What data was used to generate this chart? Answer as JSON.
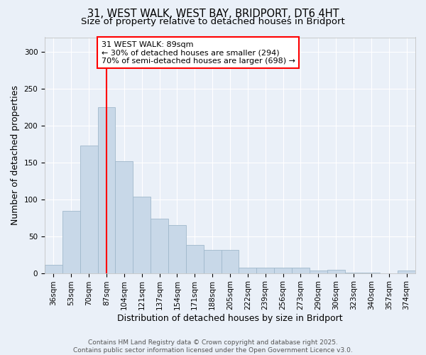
{
  "title_line1": "31, WEST WALK, WEST BAY, BRIDPORT, DT6 4HT",
  "title_line2": "Size of property relative to detached houses in Bridport",
  "xlabel": "Distribution of detached houses by size in Bridport",
  "ylabel": "Number of detached properties",
  "bin_labels": [
    "36sqm",
    "53sqm",
    "70sqm",
    "87sqm",
    "104sqm",
    "121sqm",
    "137sqm",
    "154sqm",
    "171sqm",
    "188sqm",
    "205sqm",
    "222sqm",
    "239sqm",
    "256sqm",
    "273sqm",
    "290sqm",
    "306sqm",
    "323sqm",
    "340sqm",
    "357sqm",
    "374sqm"
  ],
  "bar_values": [
    11,
    84,
    173,
    225,
    152,
    104,
    74,
    65,
    38,
    31,
    31,
    7,
    7,
    7,
    7,
    3,
    4,
    1,
    1,
    0,
    3
  ],
  "bar_color": "#c8d8e8",
  "bar_edgecolor": "#a0b8cc",
  "vline_x": 3,
  "vline_color": "red",
  "annotation_box_text": "31 WEST WALK: 89sqm\n← 30% of detached houses are smaller (294)\n70% of semi-detached houses are larger (698) →",
  "annotation_box_color": "red",
  "annotation_box_facecolor": "white",
  "ylim": [
    0,
    320
  ],
  "yticks": [
    0,
    50,
    100,
    150,
    200,
    250,
    300
  ],
  "background_color": "#eaf0f8",
  "grid_color": "white",
  "footer_text": "Contains HM Land Registry data © Crown copyright and database right 2025.\nContains public sector information licensed under the Open Government Licence v3.0.",
  "title_fontsize": 10.5,
  "subtitle_fontsize": 9.5,
  "axis_label_fontsize": 9,
  "tick_fontsize": 7.5,
  "annotation_fontsize": 8,
  "footer_fontsize": 6.5
}
